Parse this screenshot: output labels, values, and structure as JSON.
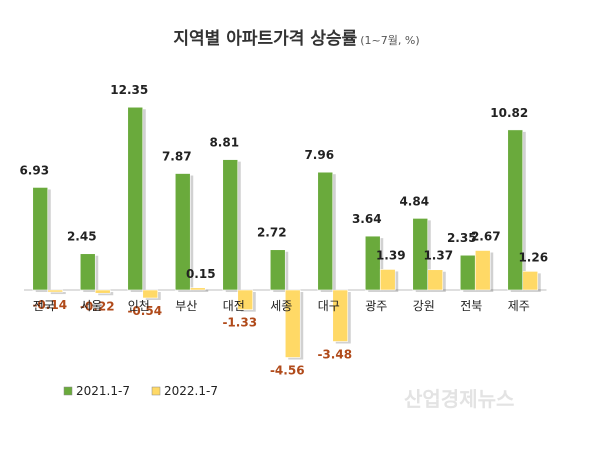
{
  "chart_data": {
    "type": "bar",
    "title": "지역별 아파트가격 상승률",
    "subtitle": "(1~7월, %)",
    "categories": [
      "전국",
      "서울",
      "인천",
      "부산",
      "대전",
      "세종",
      "대구",
      "광주",
      "강원",
      "전북",
      "제주"
    ],
    "series": [
      {
        "name": "2021.1-7",
        "color": "#6aaa3c",
        "label_color": "#222222",
        "values": [
          6.93,
          2.45,
          12.35,
          7.87,
          8.81,
          2.72,
          7.96,
          3.64,
          4.84,
          2.35,
          10.82
        ]
      },
      {
        "name": "2022.1-7",
        "color": "#ffd966",
        "label_color": "#222222",
        "negative_label_color": "#b04a1a",
        "values": [
          -0.14,
          -0.22,
          -0.54,
          0.15,
          -1.33,
          -4.56,
          -3.48,
          1.39,
          1.37,
          2.67,
          1.26
        ]
      }
    ],
    "value_labels": {
      "2021.1-7": [
        "6.93",
        "2.45",
        "12.35",
        "7.87",
        "8.81",
        "2.72",
        "7.96",
        "3.64",
        "4.84",
        "2.35",
        "10.82"
      ],
      "2022.1-7": [
        "-0.14",
        "-0.22",
        "-0.54",
        "0.15",
        "-1.33",
        "-4.56",
        "-3.48",
        "1.39",
        "1.37",
        "2.67",
        "1.26"
      ]
    },
    "xlabel": "",
    "ylabel": "",
    "ylim": [
      -5,
      13
    ],
    "grid": false,
    "legend": "bottom-left"
  },
  "watermark": "산업경제뉴스"
}
